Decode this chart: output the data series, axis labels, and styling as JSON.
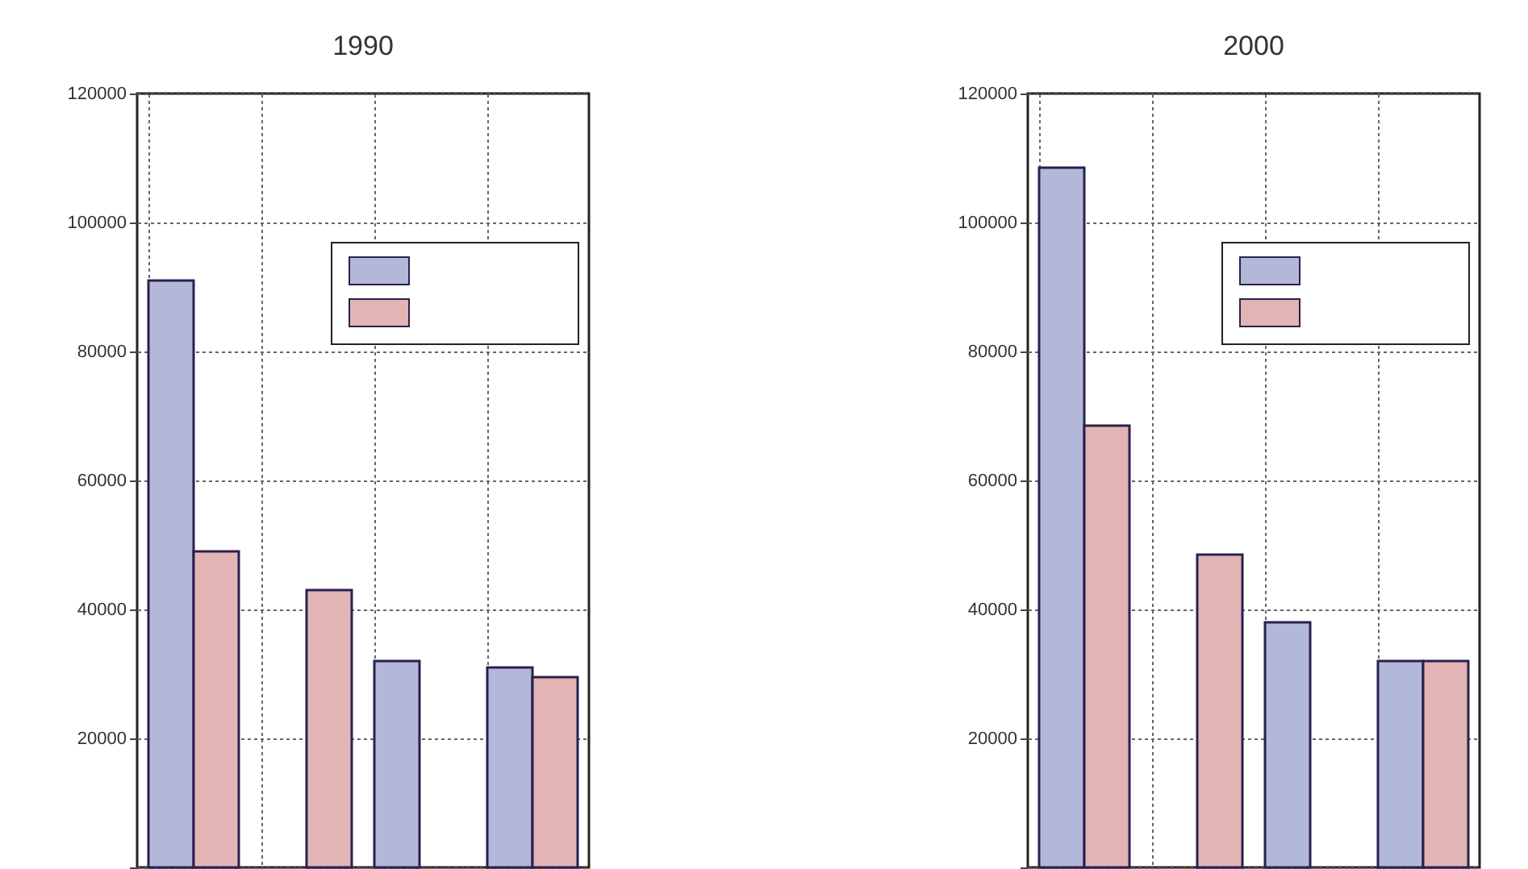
{
  "chart_data": [
    {
      "type": "bar",
      "title": "1990",
      "categories": [
        null,
        null,
        null,
        null
      ],
      "series": [
        {
          "color": "#b4b8d8",
          "values": [
            91000,
            null,
            32000,
            31000
          ]
        },
        {
          "color": "#e2b4b4",
          "values": [
            49000,
            43000,
            null,
            29500
          ]
        }
      ],
      "ylim": [
        0,
        120000
      ],
      "yticks": [
        {
          "value": 0,
          "label": null
        },
        20000,
        40000,
        60000,
        80000,
        100000,
        120000
      ],
      "grid": true,
      "tick_labels": "y"
    },
    {
      "type": "bar",
      "title": "2000",
      "categories": [
        null,
        null,
        null,
        null
      ],
      "series": [
        {
          "color": "#b4b8d8",
          "values": [
            108500,
            null,
            38000,
            32000
          ]
        },
        {
          "color": "#e2b4b4",
          "values": [
            68500,
            48500,
            null,
            32000
          ]
        }
      ],
      "ylim": [
        0,
        120000
      ],
      "yticks": [
        {
          "value": 0,
          "label": null
        },
        20000,
        40000,
        60000,
        80000,
        100000,
        120000
      ],
      "grid": true,
      "tick_labels": "y"
    }
  ]
}
